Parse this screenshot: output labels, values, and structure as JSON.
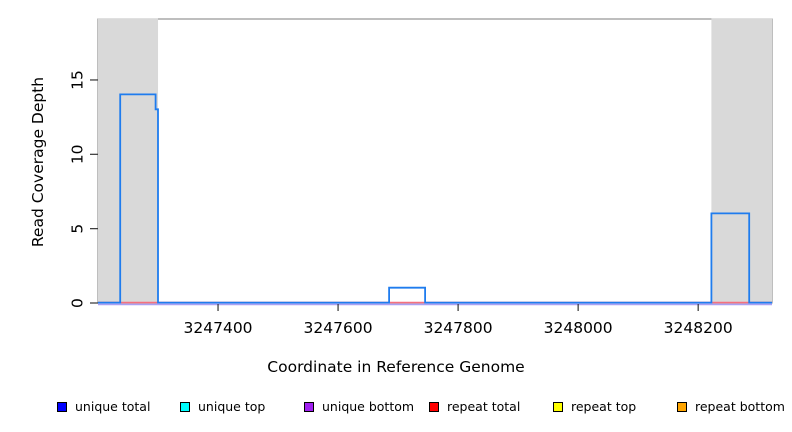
{
  "labels": {
    "x_axis": "Coordinate in Reference Genome",
    "y_axis": "Read Coverage Depth"
  },
  "legend": {
    "items": [
      {
        "label": "unique total",
        "color": "#0000FF",
        "x": 57
      },
      {
        "label": "unique top",
        "color": "#00FFFF",
        "x": 180
      },
      {
        "label": "unique bottom",
        "color": "#A020F0",
        "x": 304
      },
      {
        "label": "repeat total",
        "color": "#FF0000",
        "x": 429
      },
      {
        "label": "repeat top",
        "color": "#FFFF00",
        "x": 553
      },
      {
        "label": "repeat bottom",
        "color": "#FFA500",
        "x": 677
      }
    ]
  },
  "chart_data": {
    "type": "line",
    "subtype": "step-coverage",
    "title": "",
    "xlabel": "Coordinate in Reference Genome",
    "ylabel": "Read Coverage Depth",
    "xlim": [
      3247200,
      3248323
    ],
    "ylim": [
      0,
      19.1
    ],
    "x_ticks": [
      3247400,
      3247600,
      3247800,
      3248000,
      3248200
    ],
    "y_ticks": [
      0,
      5,
      10,
      15
    ],
    "grid": false,
    "legend_position": "bottom",
    "shaded_repeat_regions": [
      {
        "start": 3247200,
        "end": 3247300
      },
      {
        "start": 3248222,
        "end": 3248323
      }
    ],
    "series": [
      {
        "name": "unique total",
        "drawn_color": "#1F7CEE",
        "baseline_depth": 0,
        "segments": [
          {
            "start": 3247237,
            "end": 3247296,
            "depth": 14
          },
          {
            "start": 3247296,
            "end": 3247300,
            "depth": 13
          },
          {
            "start": 3247685,
            "end": 3247745,
            "depth": 1
          },
          {
            "start": 3248222,
            "end": 3248285,
            "depth": 6
          }
        ]
      },
      {
        "name": "unique top",
        "drawn_color": "#00FFFF",
        "constant_depth": 0,
        "segments": []
      },
      {
        "name": "unique bottom",
        "drawn_color": "#ABA0F2",
        "constant_depth": 0,
        "segments": []
      },
      {
        "name": "repeat total",
        "drawn_color": "#F5707E",
        "constant_depth": 0,
        "segments": []
      },
      {
        "name": "repeat top",
        "drawn_color": "#FFFF00",
        "constant_depth": 0,
        "segments": []
      },
      {
        "name": "repeat bottom",
        "drawn_color": "#FFA500",
        "constant_depth": 0,
        "segments": []
      }
    ],
    "style_colors": {
      "shaded_region": "#D9D9D9",
      "plot_border": "#7D7D7D",
      "tick": "#333333",
      "trace_blue": "#1F7CEE",
      "baseline_red": "#F5707E",
      "baseline_purple": "#ABA0F2"
    }
  }
}
